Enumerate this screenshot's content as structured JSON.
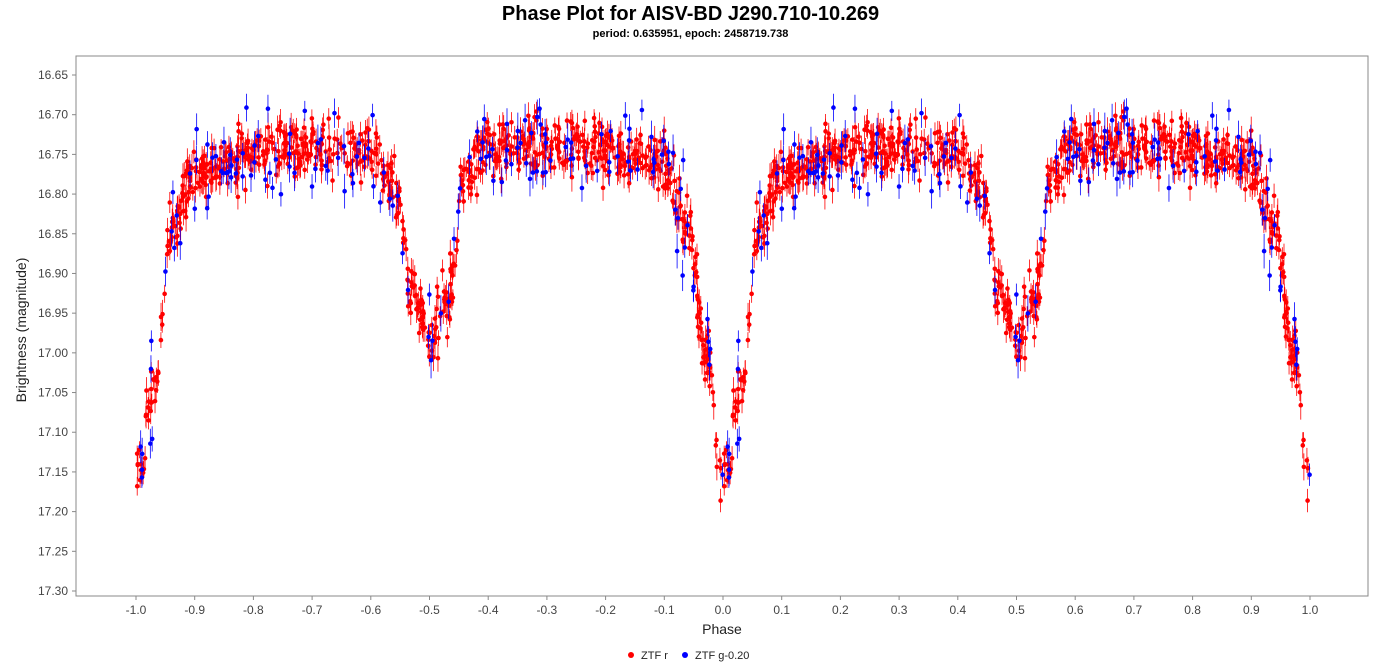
{
  "chart_data": {
    "type": "scatter",
    "title": "Phase Plot for AISV-BD J290.710-10.269",
    "subtitle": "period: 0.635951, epoch: 2458719.738",
    "xlabel": "Phase",
    "ylabel": "Brightness (magnitude)",
    "xlim": [
      -1.05,
      1.05
    ],
    "ylim": [
      17.3,
      16.63
    ],
    "y_inverted": true,
    "x_ticks": [
      "-1.0",
      "-0.9",
      "-0.8",
      "-0.7",
      "-0.6",
      "-0.5",
      "-0.4",
      "-0.3",
      "-0.2",
      "-0.1",
      "0.0",
      "0.1",
      "0.2",
      "0.3",
      "0.4",
      "0.5",
      "0.6",
      "0.7",
      "0.8",
      "0.9",
      "1.0"
    ],
    "y_ticks": [
      "16.65",
      "16.70",
      "16.75",
      "16.80",
      "16.85",
      "16.90",
      "16.95",
      "17.00",
      "17.05",
      "17.10",
      "17.15",
      "17.20",
      "17.25",
      "17.30"
    ],
    "grid": false,
    "legend_position": "bottom-center",
    "error_bars": true,
    "light_curve": {
      "period": 0.635951,
      "epoch": 2458719.738,
      "note_phase_repeat": "data repeated over phase -1.0 to 1.0",
      "key_points": [
        {
          "phase": 0.0,
          "magnitude": 17.15
        },
        {
          "phase": 0.03,
          "magnitude": 17.05
        },
        {
          "phase": 0.06,
          "magnitude": 16.85
        },
        {
          "phase": 0.1,
          "magnitude": 16.77
        },
        {
          "phase": 0.25,
          "magnitude": 16.74
        },
        {
          "phase": 0.4,
          "magnitude": 16.75
        },
        {
          "phase": 0.44,
          "magnitude": 16.78
        },
        {
          "phase": 0.47,
          "magnitude": 16.92
        },
        {
          "phase": 0.5,
          "magnitude": 16.99
        },
        {
          "phase": 0.53,
          "magnitude": 16.93
        },
        {
          "phase": 0.56,
          "magnitude": 16.78
        },
        {
          "phase": 0.6,
          "magnitude": 16.74
        },
        {
          "phase": 0.75,
          "magnitude": 16.74
        },
        {
          "phase": 0.9,
          "magnitude": 16.76
        },
        {
          "phase": 0.94,
          "magnitude": 16.84
        },
        {
          "phase": 0.97,
          "magnitude": 17.0
        },
        {
          "phase": 1.0,
          "magnitude": 17.15
        }
      ]
    },
    "series": [
      {
        "name": "ZTF r",
        "color": "#ff0000",
        "point_count": 900,
        "scatter_mag": 0.018,
        "error_bar_mag": 0.014
      },
      {
        "name": "ZTF g-0.20",
        "color": "#0000ff",
        "point_count": 160,
        "scatter_mag": 0.03,
        "error_bar_mag": 0.018
      }
    ]
  }
}
